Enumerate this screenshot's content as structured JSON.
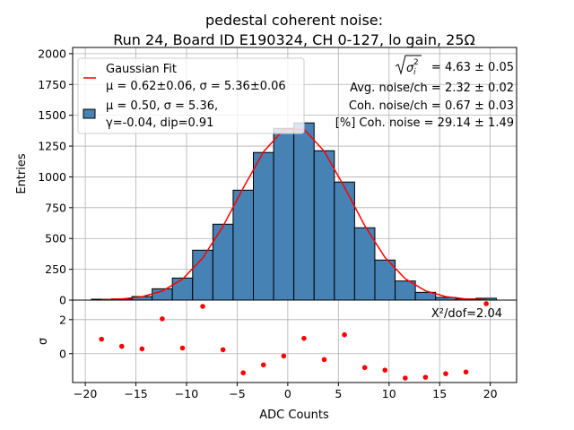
{
  "chart_data": [
    {
      "type": "bar",
      "title_line1": "pedestal coherent noise:",
      "title_line2": "Run 24, Board ID E190324, CH 0-127, lo gain, 25Ω",
      "xlabel": "",
      "ylabel": "Entries",
      "xlim": [
        -21.25,
        22.6
      ],
      "ylim": [
        0,
        2050
      ],
      "grid": true,
      "bin_edges": [
        -19.4,
        -17.4,
        -15.4,
        -13.4,
        -11.4,
        -9.4,
        -7.4,
        -5.4,
        -3.4,
        -1.4,
        0.6,
        2.6,
        4.6,
        6.6,
        8.6,
        10.6,
        12.6,
        14.6,
        16.6,
        18.6,
        20.6
      ],
      "values": [
        7,
        10,
        29,
        92,
        179,
        405,
        616,
        892,
        1198,
        1394,
        1438,
        1212,
        958,
        587,
        325,
        155,
        63,
        22,
        10,
        15
      ],
      "bar_color": "#4682b4",
      "fit": {
        "type": "line",
        "name": "Gaussian Fit",
        "mu": 0.62,
        "sigma": 5.36,
        "amplitude": 1410,
        "color": "#ff0000",
        "x_range": [
          -18.4,
          19.6
        ]
      },
      "yticks": [
        0,
        250,
        500,
        750,
        1000,
        1250,
        1500,
        1750,
        2000
      ],
      "ytick_labels": [
        "0",
        "250",
        "500",
        "750",
        "1000",
        "1250",
        "1500",
        "1750",
        "2000"
      ],
      "legend": {
        "placement": "top-left",
        "fit_label": "Gaussian Fit",
        "fit_params": "μ = 0.62±0.06, σ = 5.36±0.06",
        "hist_line1": "μ = 0.50, σ = 5.36,",
        "hist_line2": "γ=-0.04, dip=0.91"
      },
      "annotations": {
        "sigma_label": "σ",
        "sigma_sub": "i",
        "sigma_sup": "2",
        "sigma_value": "= 4.63 ± 0.05",
        "avg_noise": "Avg. noise/ch = 2.32 ± 0.02",
        "coh_noise": "Coh. noise/ch = 0.67 ± 0.03",
        "coh_pct": "[%] Coh. noise = 29.14  ± 1.49"
      }
    },
    {
      "type": "scatter",
      "xlabel": "ADC Counts",
      "ylabel": "σ",
      "xlim": [
        -21.25,
        22.6
      ],
      "ylim": [
        -1.7,
        3.15
      ],
      "grid": true,
      "x": [
        -18.4,
        -16.4,
        -14.4,
        -12.4,
        -10.4,
        -8.4,
        -6.4,
        -4.4,
        -2.4,
        -0.4,
        1.6,
        3.6,
        5.6,
        7.6,
        9.6,
        11.6,
        13.6,
        15.6,
        17.6,
        19.6
      ],
      "y": [
        0.85,
        0.43,
        0.28,
        2.05,
        0.33,
        2.78,
        0.23,
        -1.13,
        -0.66,
        -0.14,
        0.9,
        -0.35,
        1.11,
        -0.82,
        -0.97,
        -1.44,
        -1.39,
        -1.18,
        -1.08,
        2.94
      ],
      "color": "#ff0000",
      "yticks": [
        0,
        2
      ],
      "ytick_labels": [
        "0",
        "2"
      ],
      "xticks": [
        -20,
        -15,
        -10,
        -5,
        0,
        5,
        10,
        15,
        20
      ],
      "xtick_labels": [
        "−20",
        "−15",
        "−10",
        "−5",
        "0",
        "5",
        "10",
        "15",
        "20"
      ],
      "annotation": "X²/dof=2.04"
    }
  ]
}
